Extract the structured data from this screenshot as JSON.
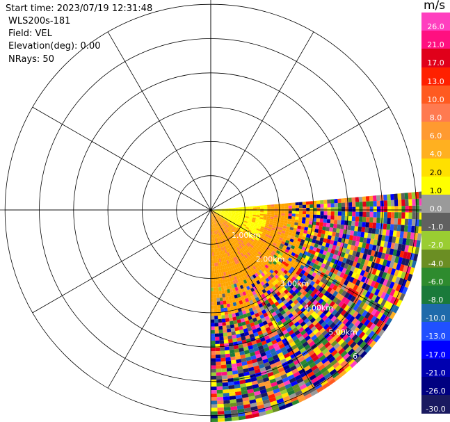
{
  "info": {
    "start_time": "Start time: 2023/07/19 12:31:48",
    "instrument": "WLS200s-181",
    "field": "Field: VEL",
    "elevation": "Elevation(deg): 0.00",
    "nrays": "NRays: 50"
  },
  "chart_data": {
    "type": "heatmap",
    "projection": "polar PPI",
    "range_labels": [
      "1.00km",
      "2.00km",
      "3.00km",
      "4.00km",
      "5.00km",
      "6"
    ],
    "range_rings_km": [
      1,
      2,
      3,
      4,
      5,
      6
    ],
    "sector_azimuth_deg": [
      90,
      180
    ],
    "colorbar": {
      "unit": "m/s",
      "ticks": [
        "26.0",
        "21.0",
        "17.0",
        "13.0",
        "10.0",
        "8.0",
        "6.0",
        "4.0",
        "2.0",
        "1.0",
        "0.0",
        "-1.0",
        "-2.0",
        "-4.0",
        "-6.0",
        "-8.0",
        "-10.0",
        "-13.0",
        "-17.0",
        "-21.0",
        "-26.0",
        "-30.0"
      ],
      "colors": [
        "#ff3fbf",
        "#ff1080",
        "#e0001a",
        "#ff2000",
        "#ff5a20",
        "#ff7a50",
        "#ff9a30",
        "#ffb020",
        "#ffe000",
        "#ffff00",
        "#9a9a9a",
        "#606060",
        "#9acd32",
        "#6b8e23",
        "#2e8b2e",
        "#1a7a3a",
        "#1e6aaa",
        "#2050ff",
        "#0000ff",
        "#0000b0",
        "#000080",
        "#1a1a60"
      ]
    }
  }
}
